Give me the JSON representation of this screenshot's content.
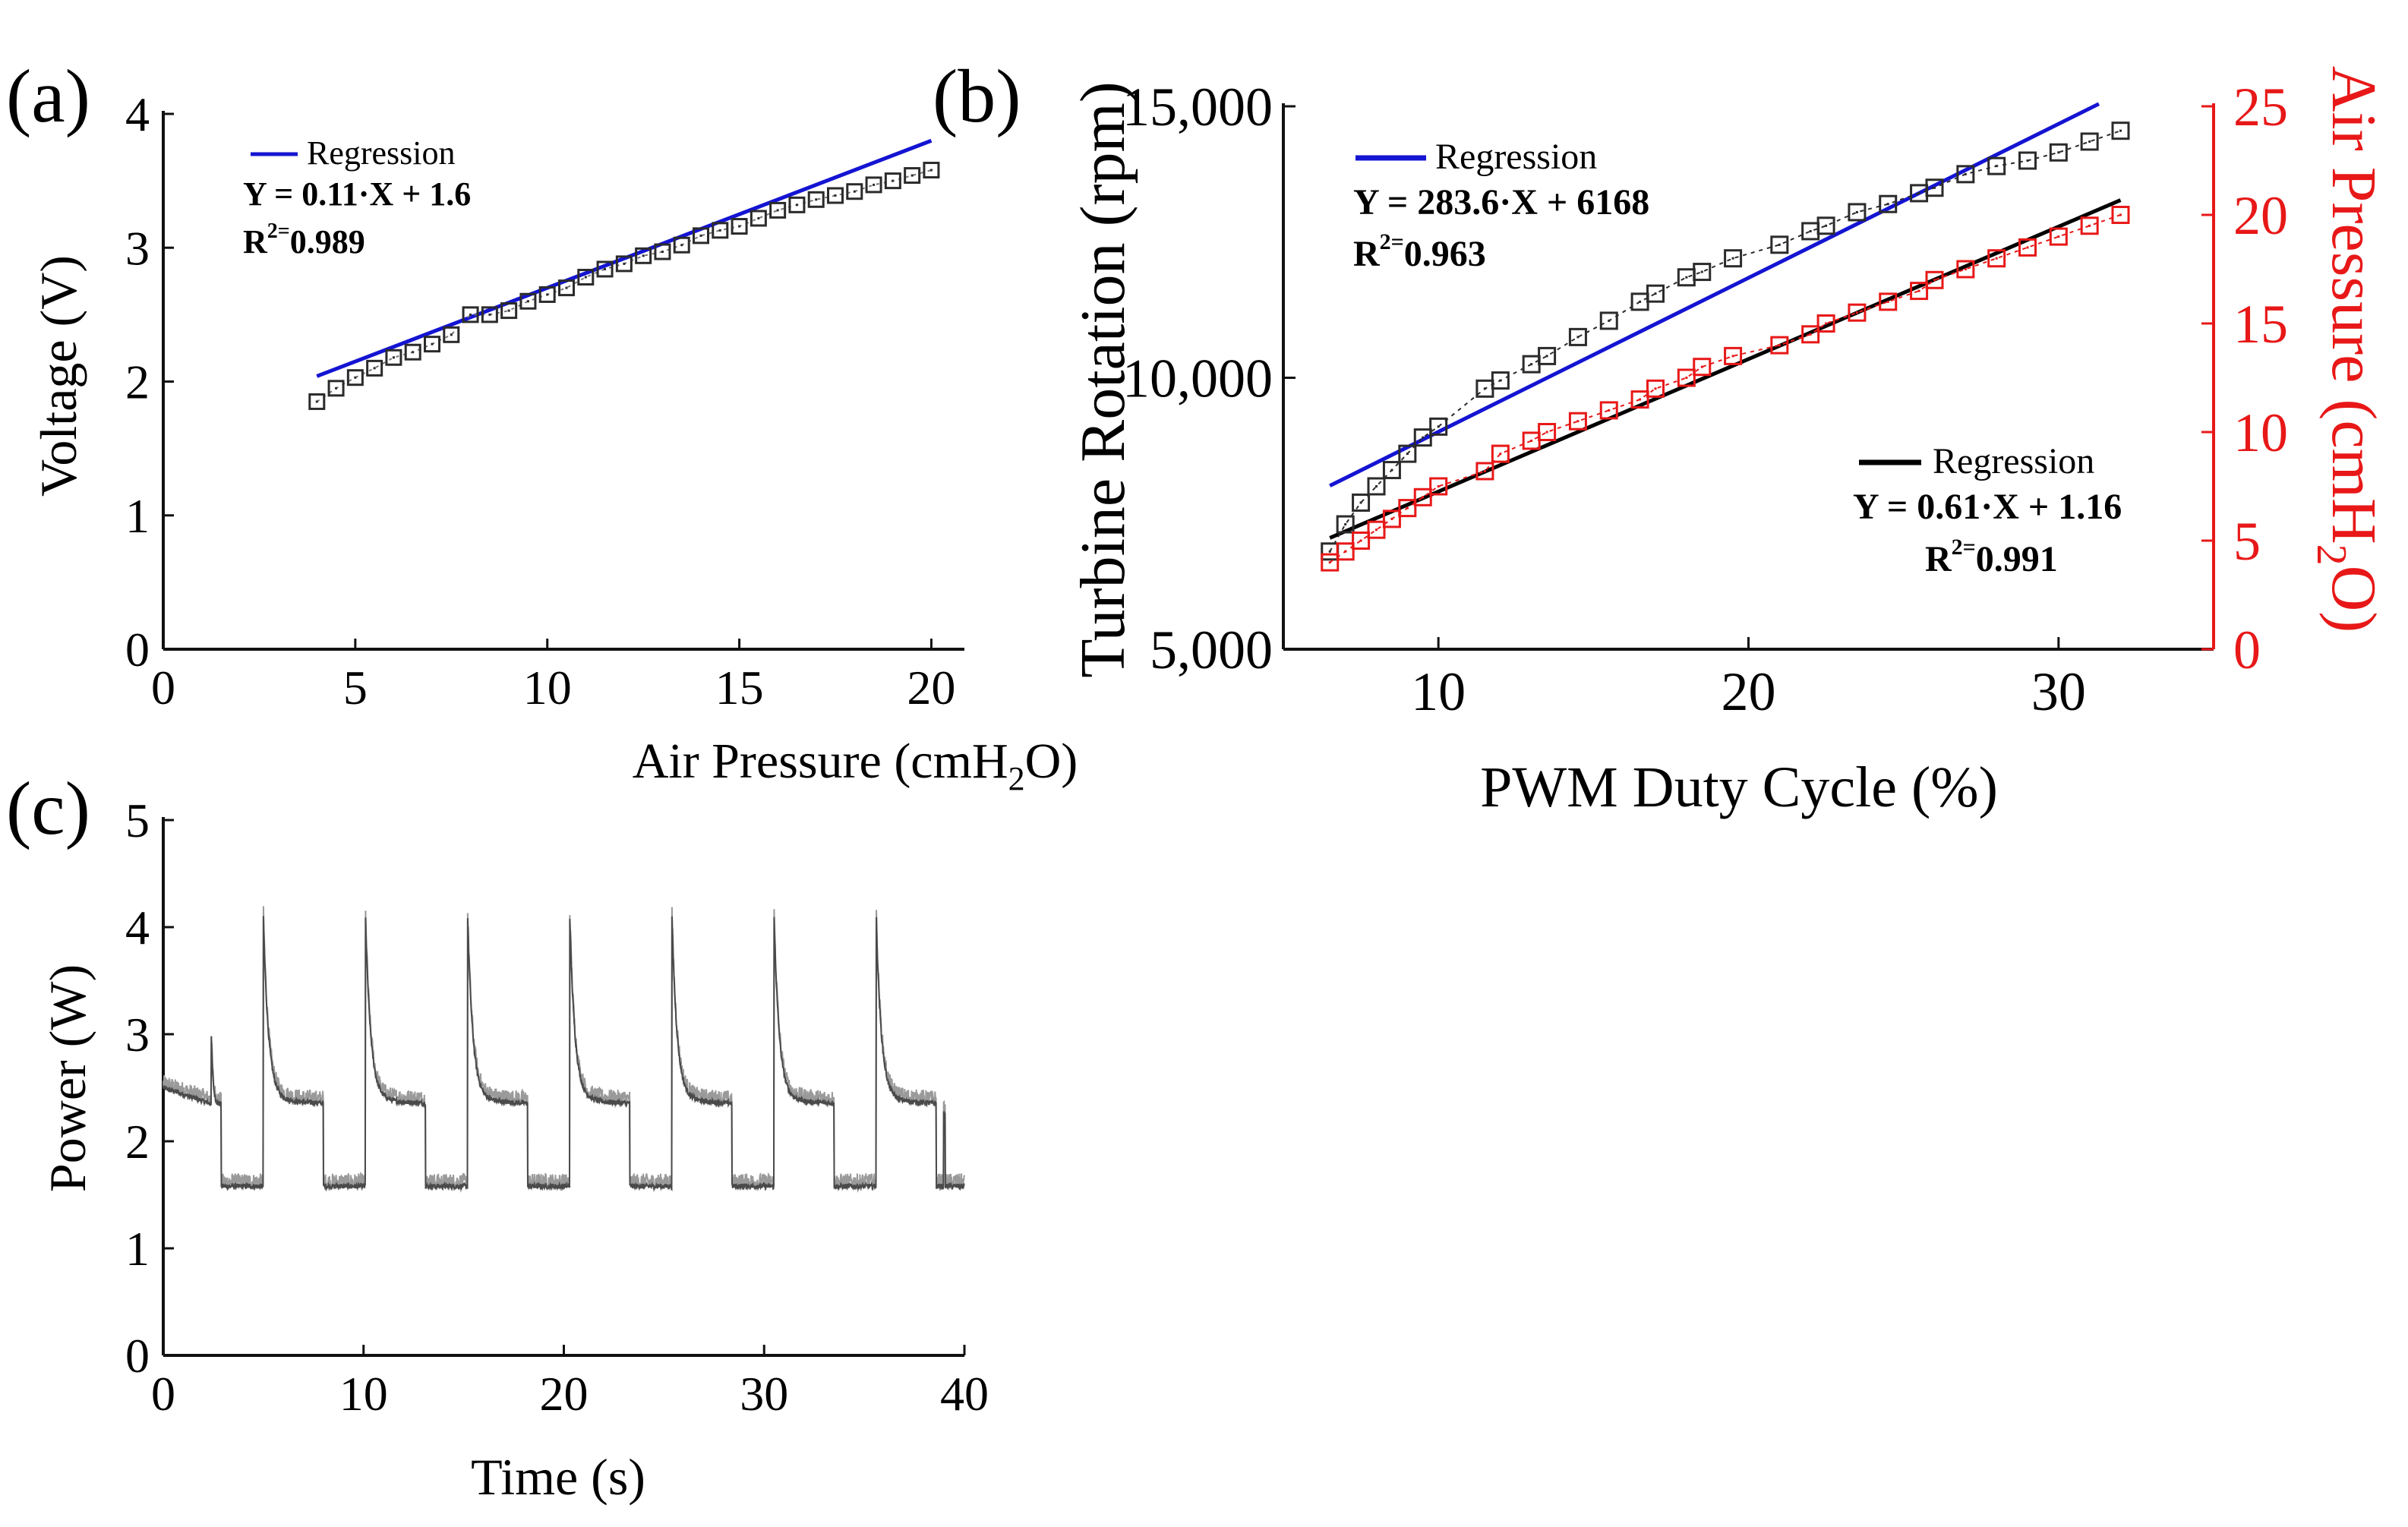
{
  "chart_data": [
    {
      "panel": "(a)",
      "type": "scatter",
      "xlabel": {
        "main": "Air  Pressure  (cmH",
        "sub": "2",
        "tail": "O)"
      },
      "ylabel": "Voltage (V)",
      "xlim": [
        0,
        21
      ],
      "ylim": [
        0,
        4
      ],
      "xticks": [
        "0",
        "5",
        "10",
        "15",
        "20"
      ],
      "yticks": [
        "0",
        "1",
        "2",
        "3",
        "4"
      ],
      "x": [
        4,
        4.5,
        5,
        5.5,
        6,
        6.5,
        7,
        7.5,
        8,
        8.5,
        9,
        9.5,
        10,
        10.5,
        11,
        11.5,
        12,
        12.5,
        13,
        13.5,
        14,
        14.5,
        15,
        15.5,
        16,
        16.5,
        17,
        17.5,
        18,
        18.5,
        19,
        19.5,
        20
      ],
      "y": [
        1.85,
        1.95,
        2.03,
        2.1,
        2.18,
        2.22,
        2.28,
        2.35,
        2.5,
        2.5,
        2.53,
        2.6,
        2.65,
        2.7,
        2.78,
        2.84,
        2.88,
        2.94,
        2.97,
        3.02,
        3.09,
        3.13,
        3.16,
        3.22,
        3.28,
        3.32,
        3.36,
        3.39,
        3.42,
        3.47,
        3.5,
        3.54,
        3.58
      ],
      "regression": {
        "slope": 0.11,
        "intercept": 1.6,
        "x_range": [
          4,
          20
        ]
      },
      "legend": {
        "label": "Regression",
        "equation": "Y = 0.11·X + 1.6",
        "r2_prefix": "R",
        "r2_exp": "2=",
        "r2_value": "0.989"
      },
      "marker_color": "#2b2b2b",
      "regression_color": "#1414d2"
    },
    {
      "panel": "(b)",
      "type": "scatter",
      "xlabel": "PWM Duty  Cycle  (%)",
      "ylabel_left": "Turbine  Rotation  (rpm)",
      "ylabel_right": {
        "main": "Air  Pressure  (cmH",
        "sub": "2",
        "tail": "O)"
      },
      "xlim": [
        5,
        35
      ],
      "ylim_left": [
        5000,
        15000
      ],
      "ylim_right": [
        0,
        25
      ],
      "xticks": [
        "10",
        "20",
        "30"
      ],
      "xtick_values": [
        10,
        20,
        30
      ],
      "yticks_left": [
        "5,000",
        "10,000",
        "15,000"
      ],
      "ytick_left_values": [
        5000,
        10000,
        15000
      ],
      "yticks_right": [
        "0",
        "5",
        "10",
        "15",
        "20",
        "25"
      ],
      "series": [
        {
          "name": "Turbine Rotation",
          "axis": "left",
          "color": "#2b2b2b",
          "x": [
            6.5,
            7,
            7.5,
            8,
            8.5,
            9,
            9.5,
            10,
            11.5,
            12,
            13,
            13.5,
            14.5,
            15.5,
            16.5,
            17,
            18,
            18.5,
            19.5,
            21,
            22,
            22.5,
            23.5,
            24.5,
            25.5,
            26,
            27,
            28,
            29,
            30,
            31,
            32
          ],
          "y": [
            6800,
            7300,
            7700,
            8000,
            8300,
            8600,
            8900,
            9100,
            9800,
            9950,
            10250,
            10400,
            10750,
            11050,
            11400,
            11550,
            11850,
            11950,
            12200,
            12450,
            12700,
            12800,
            13050,
            13200,
            13400,
            13500,
            13750,
            13900,
            14000,
            14150,
            14350,
            14550
          ]
        },
        {
          "name": "Air Pressure",
          "axis": "right",
          "color": "#e81818",
          "x": [
            6.5,
            7,
            7.5,
            8,
            8.5,
            9,
            9.5,
            10,
            11.5,
            12,
            13,
            13.5,
            14.5,
            15.5,
            16.5,
            17,
            18,
            18.5,
            19.5,
            21,
            22,
            22.5,
            23.5,
            24.5,
            25.5,
            26,
            27,
            28,
            29,
            30,
            31,
            32
          ],
          "y": [
            4.0,
            4.5,
            5.0,
            5.5,
            6.0,
            6.5,
            7.0,
            7.5,
            8.2,
            9.0,
            9.6,
            10.0,
            10.5,
            11.0,
            11.5,
            12.0,
            12.5,
            13.0,
            13.5,
            14.0,
            14.5,
            15.0,
            15.5,
            16.0,
            16.5,
            17.0,
            17.5,
            18.0,
            18.5,
            19.0,
            19.5,
            20.0
          ]
        }
      ],
      "regressions": [
        {
          "axis": "left",
          "color": "#1414d2",
          "slope": 283.6,
          "intercept": 6168,
          "x_range": [
            6.5,
            31.3
          ],
          "label": "Regression",
          "equation": "Y = 283.6·X + 6168",
          "r2_prefix": "R",
          "r2_exp": "2=",
          "r2_value": "0.963"
        },
        {
          "axis": "right",
          "color": "#000000",
          "slope": 0.61,
          "intercept": 1.16,
          "x_range": [
            6.5,
            32
          ],
          "label": "Regression",
          "equation": "Y = 0.61·X + 1.16",
          "r2_prefix": "R",
          "r2_exp": "2=",
          "r2_value": "0.991"
        }
      ],
      "right_axis_color": "#e81818"
    },
    {
      "panel": "(c)",
      "type": "line",
      "xlabel": "Time  (s)",
      "ylabel": "Power  (W)",
      "xlim": [
        0,
        40
      ],
      "ylim": [
        0,
        5
      ],
      "xticks": [
        "0",
        "10",
        "20",
        "30",
        "40"
      ],
      "yticks": [
        "0",
        "1",
        "2",
        "3",
        "4",
        "5"
      ],
      "description": "Periodic square-like power signal with decaying spikes",
      "period_s": 5.1,
      "first_spike_s": 5.0,
      "cycle_count": 8,
      "spike_peak_w": 4.0,
      "high_level_w": 2.35,
      "low_level_w": 1.58,
      "initial_level_w": 2.5,
      "initial_transient": {
        "time_s": 2.4,
        "peak_w": 3.0
      },
      "end_spike": {
        "time_s": 39.0,
        "peak_w": 2.25
      },
      "line_color": "#4a4a4a",
      "noise_color": "#9a9a9a"
    }
  ]
}
